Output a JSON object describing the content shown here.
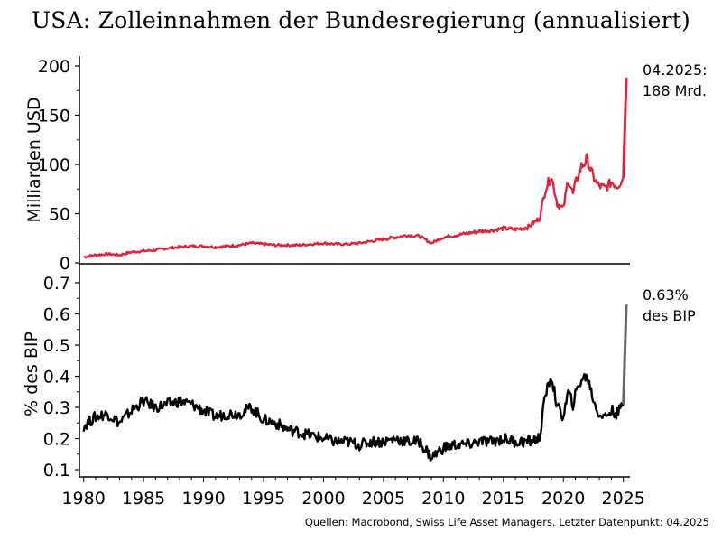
{
  "title": "USA: Zolleinnahmen der Bundesregierung (annualisiert)",
  "source": "Quellen: Macrobond, Swiss Life Asset Managers. Letzter Datenpunkt: 04.2025",
  "chart_data": [
    {
      "type": "line",
      "ylabel": "Milliarden USD",
      "ylim": [
        0,
        200
      ],
      "yticks": [
        "0",
        "50",
        "100",
        "150",
        "200"
      ],
      "x_range": [
        1979.8,
        2025.4
      ],
      "annotation": [
        "04.2025:",
        "188 Mrd."
      ],
      "color": "#d7263d",
      "last_segment_color": "#d7263d",
      "series": [
        {
          "x": [
            1980,
            1981,
            1982,
            1983,
            1984,
            1985,
            1986,
            1987,
            1988,
            1989,
            1990,
            1991,
            1992,
            1993,
            1994,
            1995,
            1996,
            1997,
            1998,
            1999,
            2000,
            2001,
            2002,
            2003,
            2004,
            2005,
            2006,
            2007,
            2008,
            2009,
            2010,
            2011,
            2012,
            2013,
            2014,
            2015,
            2016,
            2017,
            2018,
            2018.5,
            2019,
            2019.5,
            2020,
            2020.4,
            2020.8,
            2021,
            2021.5,
            2022,
            2022.4,
            2022.8,
            2023,
            2023.5,
            2024,
            2024.5,
            2025.0,
            2025.25
          ],
          "values": [
            6,
            8,
            9,
            8,
            11,
            12,
            13,
            15,
            16,
            17,
            17,
            16,
            17,
            18,
            20,
            19,
            18,
            18,
            18,
            19,
            20,
            19,
            19,
            20,
            22,
            24,
            26,
            28,
            27,
            20,
            26,
            28,
            30,
            32,
            33,
            35,
            34,
            36,
            45,
            75,
            88,
            60,
            55,
            85,
            70,
            80,
            98,
            105,
            90,
            80,
            78,
            76,
            82,
            78,
            86,
            188
          ]
        }
      ]
    },
    {
      "type": "line",
      "ylabel": "% des BIP",
      "ylim": [
        0.08,
        0.72
      ],
      "yticks": [
        "0.1",
        "0.2",
        "0.3",
        "0.4",
        "0.5",
        "0.6",
        "0.7"
      ],
      "xticks": [
        "1980",
        "1985",
        "1990",
        "1995",
        "2000",
        "2005",
        "2010",
        "2015",
        "2020",
        "2025"
      ],
      "x_range": [
        1979.8,
        2025.4
      ],
      "annotation": [
        "0.63%",
        "des BIP"
      ],
      "color": "#000000",
      "last_segment_color": "#666666",
      "series": [
        {
          "x": [
            1980,
            1981,
            1982,
            1983,
            1984,
            1985,
            1986,
            1987,
            1988,
            1989,
            1990,
            1991,
            1992,
            1993,
            1994,
            1995,
            1996,
            1997,
            1998,
            1999,
            2000,
            2001,
            2002,
            2003,
            2004,
            2005,
            2006,
            2007,
            2008,
            2009,
            2010,
            2011,
            2012,
            2013,
            2014,
            2015,
            2016,
            2017,
            2018,
            2018.5,
            2019,
            2019.5,
            2020,
            2020.4,
            2020.8,
            2021,
            2021.5,
            2022,
            2022.4,
            2022.8,
            2023,
            2023.5,
            2024,
            2024.5,
            2025.0,
            2025.25
          ],
          "values": [
            0.24,
            0.27,
            0.28,
            0.25,
            0.29,
            0.32,
            0.3,
            0.31,
            0.32,
            0.31,
            0.29,
            0.27,
            0.28,
            0.28,
            0.3,
            0.26,
            0.25,
            0.23,
            0.22,
            0.21,
            0.2,
            0.19,
            0.19,
            0.18,
            0.19,
            0.19,
            0.2,
            0.19,
            0.19,
            0.14,
            0.17,
            0.18,
            0.18,
            0.19,
            0.19,
            0.2,
            0.19,
            0.19,
            0.2,
            0.34,
            0.4,
            0.3,
            0.27,
            0.35,
            0.31,
            0.34,
            0.39,
            0.4,
            0.34,
            0.29,
            0.28,
            0.27,
            0.29,
            0.28,
            0.31,
            0.63
          ]
        }
      ]
    }
  ]
}
